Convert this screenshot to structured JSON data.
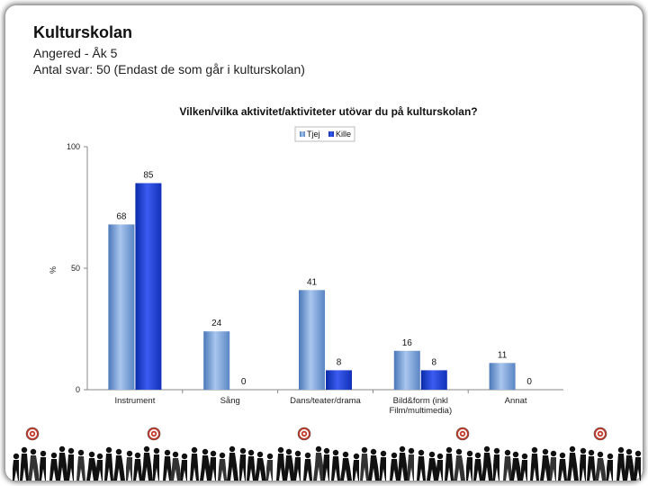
{
  "slide": {
    "title": "Kulturskolan",
    "subtitle_line1": "Angered - Åk 5",
    "subtitle_line2": "Antal svar: 50 (Endast de som går i kulturskolan)"
  },
  "chart_data": {
    "type": "bar",
    "title": "Vilken/vilka aktivitet/aktiviteter utövar du på kulturskolan?",
    "ylabel": "%",
    "ylim": [
      0,
      100
    ],
    "yticks": [
      "0",
      "50",
      "100"
    ],
    "categories": [
      "Instrument",
      "Sång",
      "Dans/teater/drama",
      "Bild&form (inkl Film/multimedia)",
      "Annat"
    ],
    "category_lines": [
      [
        "Instrument"
      ],
      [
        "Sång"
      ],
      [
        "Dans/teater/drama"
      ],
      [
        "Bild&form (inkl",
        "Film/multimedia)"
      ],
      [
        "Annat"
      ]
    ],
    "series": [
      {
        "name": "Tjej",
        "values": [
          68,
          24,
          41,
          16,
          11
        ],
        "color": "#7ea6d8"
      },
      {
        "name": "Kille",
        "values": [
          85,
          0,
          8,
          8,
          0
        ],
        "color": "#1f3fd6"
      }
    ],
    "legend_position": "top-center",
    "grid": false
  }
}
